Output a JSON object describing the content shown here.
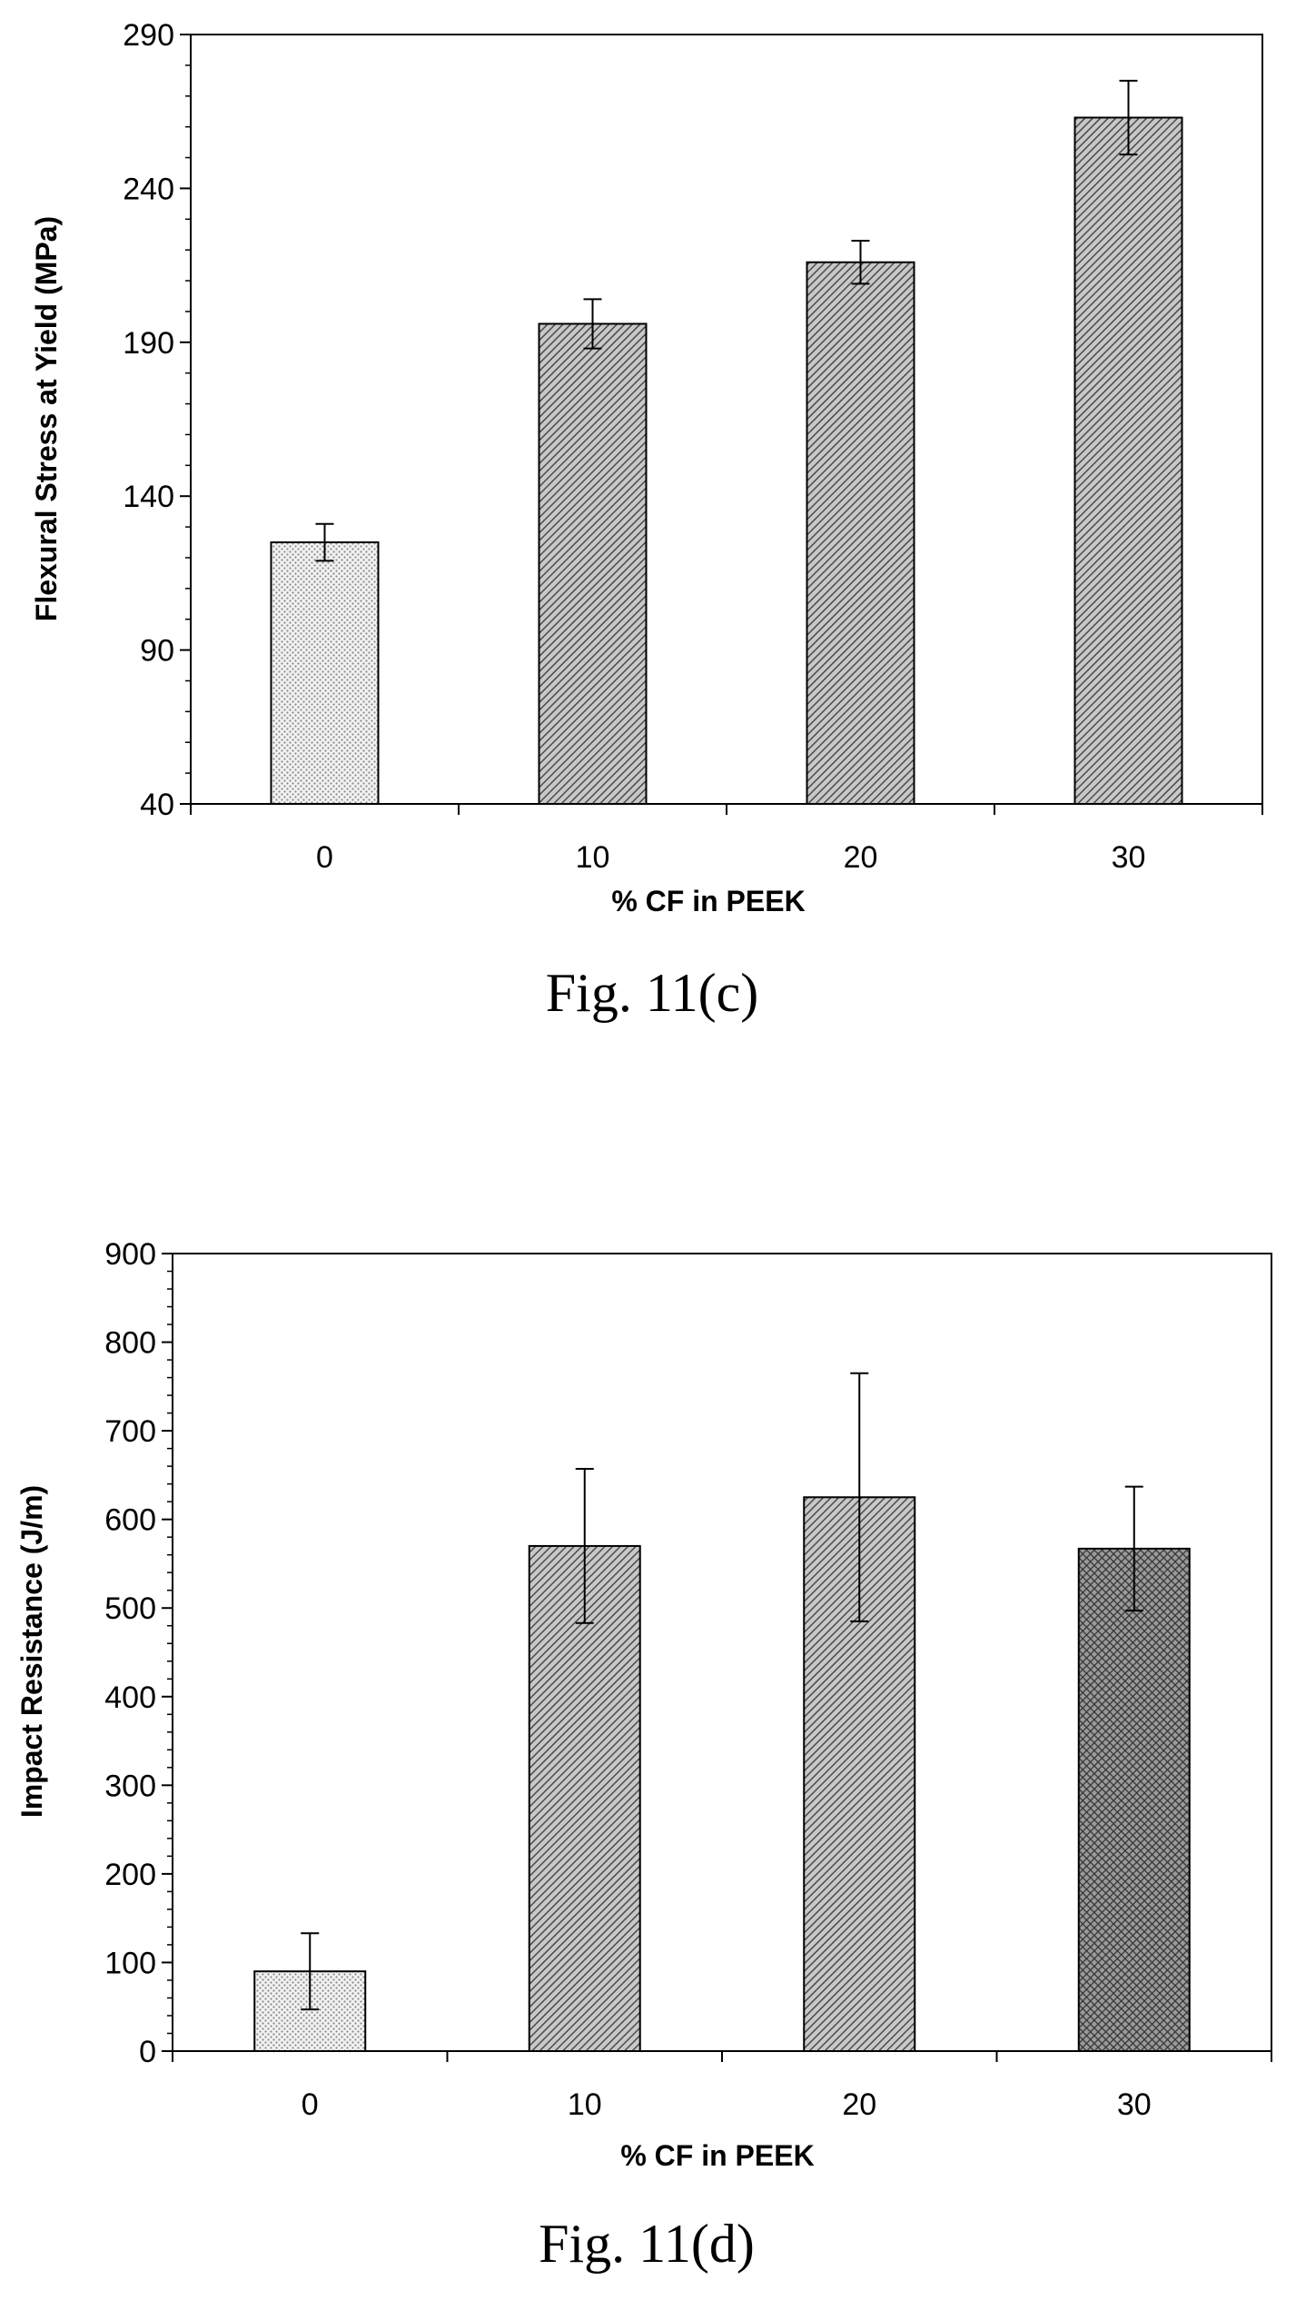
{
  "chart_data": [
    {
      "type": "bar",
      "caption": "Fig. 11(c)",
      "xlabel": "% CF in PEEK",
      "ylabel": "Flexural Stress at Yield  (MPa)",
      "categories": [
        "0",
        "10",
        "20",
        "30"
      ],
      "values": [
        125,
        196,
        216,
        263
      ],
      "error": [
        6,
        8,
        7,
        12
      ],
      "ylim": [
        40,
        290
      ],
      "yticks": [
        "40",
        "90",
        "140",
        "190",
        "240",
        "290"
      ],
      "bar_patterns": [
        "dots",
        "hatch",
        "hatch",
        "hatch"
      ],
      "grid": false,
      "legend": "none"
    },
    {
      "type": "bar",
      "caption": "Fig. 11(d)",
      "xlabel": "% CF in PEEK",
      "ylabel": "Impact Resistance (J/m)",
      "categories": [
        "0",
        "10",
        "20",
        "30"
      ],
      "values": [
        90,
        570,
        625,
        567
      ],
      "error": [
        43,
        87,
        140,
        70
      ],
      "ylim": [
        0,
        900
      ],
      "yticks": [
        "0",
        "100",
        "200",
        "300",
        "400",
        "500",
        "600",
        "700",
        "800",
        "900"
      ],
      "bar_patterns": [
        "dots",
        "hatch",
        "hatch",
        "crosshatch"
      ],
      "grid": false,
      "legend": "none"
    }
  ]
}
